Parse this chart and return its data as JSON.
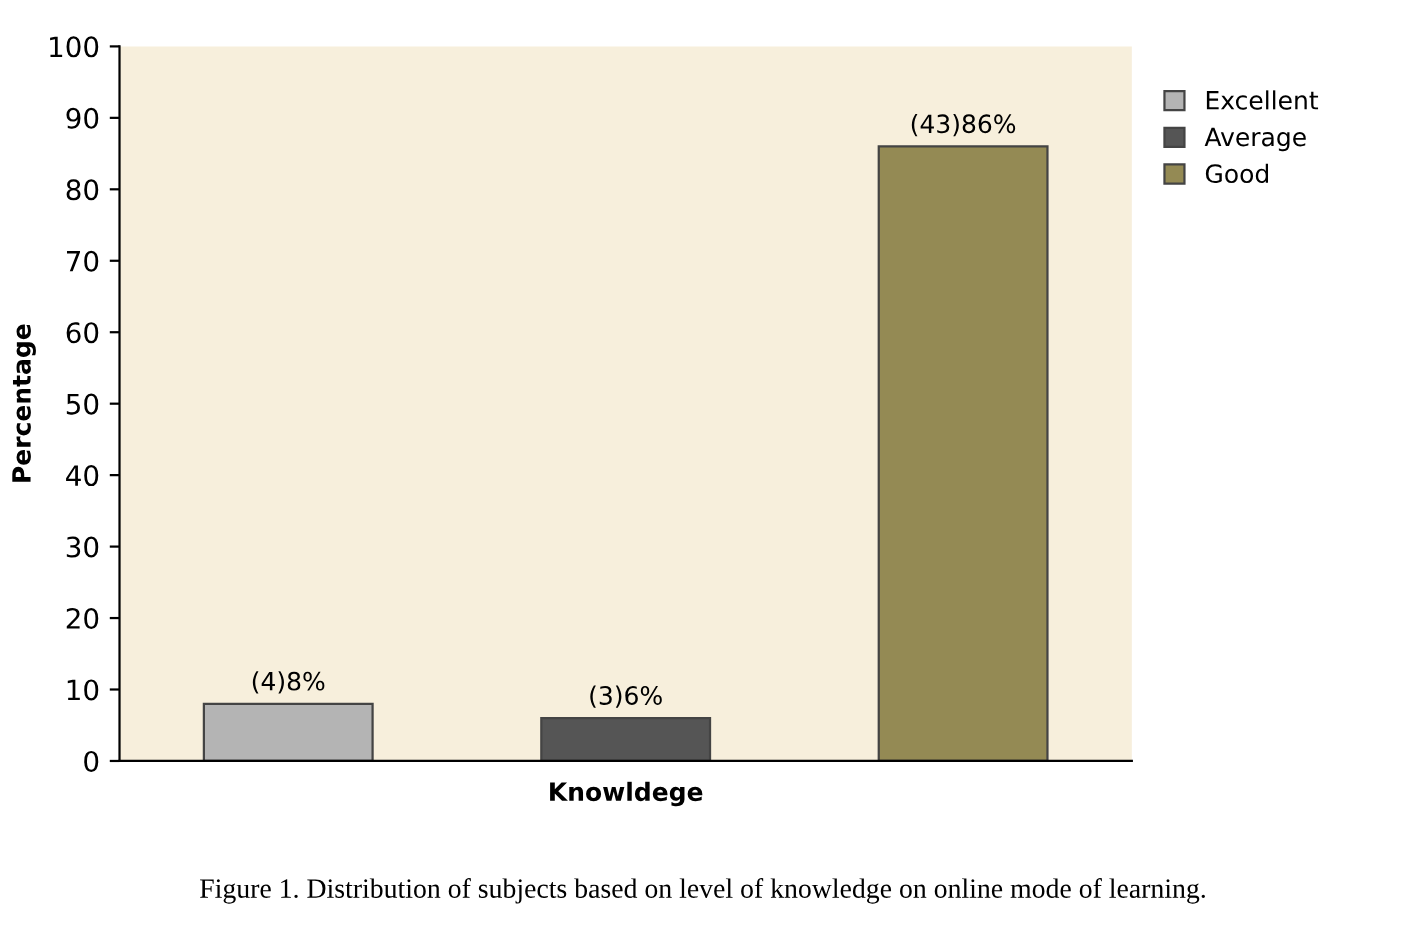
{
  "chart_data": {
    "type": "bar",
    "xlabel": "Knowldege",
    "ylabel": "Percentage",
    "annotations": [
      "Figure 1. Distribution of subjects based on level of knowledge on online mode of learning."
    ],
    "categories": [
      null,
      null,
      null
    ],
    "series": [
      {
        "name": "Excellent",
        "color": "#b4b4b4",
        "values": [
          8,
          null,
          null
        ],
        "value_labels": [
          "(4)8%",
          null,
          null
        ]
      },
      {
        "name": "Average",
        "color": "#555555",
        "values": [
          null,
          6,
          null
        ],
        "value_labels": [
          null,
          "(3)6%",
          null
        ]
      },
      {
        "name": "Good",
        "color": "#948a54",
        "values": [
          null,
          null,
          86
        ],
        "value_labels": [
          null,
          null,
          "(43)86%"
        ]
      }
    ],
    "ylim": [
      0,
      100
    ],
    "yticks": [
      0,
      10,
      20,
      30,
      40,
      50,
      60,
      70,
      80,
      90,
      100
    ],
    "grid": false,
    "legend": "right"
  }
}
